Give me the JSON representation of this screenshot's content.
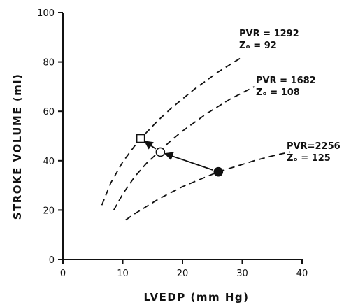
{
  "chart_data": {
    "type": "line",
    "xlabel": "LVEDP  (mm Hg)",
    "ylabel": "STROKE VOLUME (ml)",
    "xlim": [
      0,
      40
    ],
    "ylim": [
      0,
      100
    ],
    "xticks": [
      "0",
      "10",
      "20",
      "30",
      "40"
    ],
    "yticks": [
      "0",
      "20",
      "40",
      "60",
      "80",
      "100"
    ],
    "grid": false,
    "series": [
      {
        "label_line1": "PVR = 1292",
        "label_line2": "Zₒ = 92",
        "style": "dashed",
        "x": [
          6.5,
          8,
          10,
          12,
          14,
          16,
          18,
          20,
          22,
          24,
          26,
          28,
          30
        ],
        "y": [
          22,
          31,
          39.5,
          46,
          51.5,
          56.5,
          61,
          65,
          69,
          72.5,
          76,
          79,
          82
        ]
      },
      {
        "label_line1": "PVR = 1682",
        "label_line2": "Zₒ = 108",
        "style": "dashed",
        "x": [
          8.5,
          10,
          12,
          14,
          16,
          18,
          20,
          22,
          24,
          26,
          28,
          30,
          32
        ],
        "y": [
          20,
          26.5,
          33.5,
          39,
          43.5,
          48,
          52,
          55.5,
          59,
          62,
          65,
          67.5,
          70
        ]
      },
      {
        "label_line1": "PVR=2256",
        "label_line2": "Zₒ = 125",
        "style": "dashed",
        "x": [
          10.5,
          12,
          14,
          16,
          18,
          20,
          22,
          24,
          26,
          28,
          30,
          32,
          34,
          36,
          38
        ],
        "y": [
          16,
          18.5,
          21.5,
          24.5,
          27,
          29.5,
          31.5,
          33.5,
          35.5,
          37,
          38.5,
          40,
          41.3,
          42.5,
          43.5
        ]
      }
    ],
    "points": [
      {
        "shape": "square",
        "fill": "open",
        "x": 13,
        "y": 49
      },
      {
        "shape": "circle",
        "fill": "open",
        "x": 16.3,
        "y": 43.5
      },
      {
        "shape": "circle",
        "fill": "filled",
        "x": 26,
        "y": 35.5
      }
    ],
    "arrows": [
      {
        "from": [
          26,
          35.5
        ],
        "to": [
          16.3,
          43.5
        ]
      },
      {
        "from": [
          16.3,
          43.5
        ],
        "to": [
          13,
          49
        ]
      }
    ]
  }
}
